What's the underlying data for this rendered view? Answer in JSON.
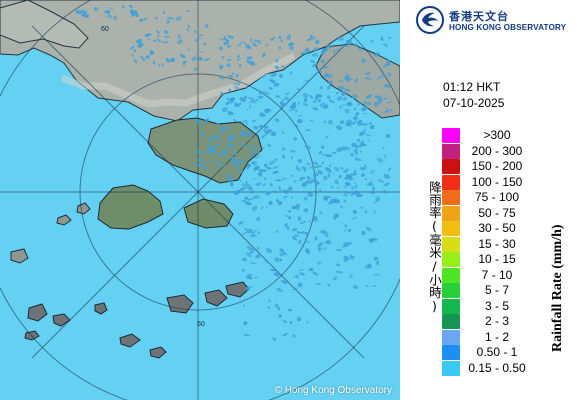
{
  "header": {
    "zh_title": "香港天文台",
    "en_title": "HONG KONG OBSERVATORY"
  },
  "timestamp": {
    "time": "01:12 HKT",
    "date": "07-10-2025"
  },
  "legend": {
    "title_en": "Rainfall Rate (mm/h)",
    "title_zh": "降雨率(毫米/小時)",
    "items": [
      {
        "label": ">300",
        "color": "#ff00ff"
      },
      {
        "label": "200 - 300",
        "color": "#c21f7f"
      },
      {
        "label": "150 - 200",
        "color": "#cc1111"
      },
      {
        "label": "100 - 150",
        "color": "#f22d16"
      },
      {
        "label": "75 - 100",
        "color": "#ef6c18"
      },
      {
        "label": "50 - 75",
        "color": "#efa418"
      },
      {
        "label": "30 - 50",
        "color": "#f1be12"
      },
      {
        "label": "15 - 30",
        "color": "#d8dd17"
      },
      {
        "label": "10 - 15",
        "color": "#99ef1a"
      },
      {
        "label": "7 - 10",
        "color": "#4de524"
      },
      {
        "label": "5 - 7",
        "color": "#27cf38"
      },
      {
        "label": "3 - 5",
        "color": "#13b84f"
      },
      {
        "label": "2 - 3",
        "color": "#169454"
      },
      {
        "label": "1 - 2",
        "color": "#6aa7f2"
      },
      {
        "label": "0.50 - 1",
        "color": "#1d8ff0"
      },
      {
        "label": "0.15 - 0.50",
        "color": "#39c9f4"
      }
    ]
  },
  "map": {
    "copyright": "© Hong Kong Observatory",
    "range_ring_label": "60",
    "sea_color": "#63d1f2",
    "land_color": "#a8b1a8",
    "rain_color": "#3f9fd7"
  }
}
